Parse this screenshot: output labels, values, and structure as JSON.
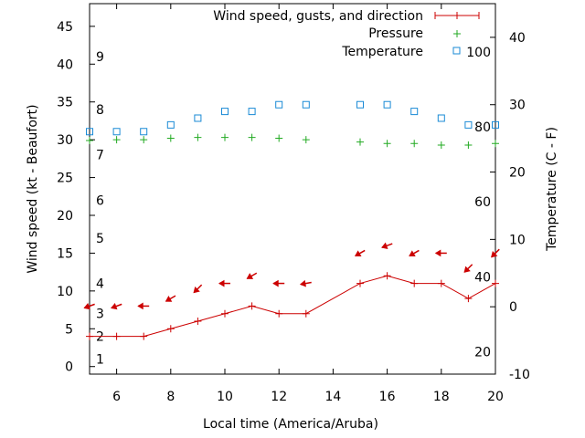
{
  "chart_data": {
    "type": "line",
    "xlabel": "Local time (America/Aruba)",
    "ylabel": "Wind speed (kt - Beaufort)",
    "y2label": "Temperature (C - F)",
    "xlim": [
      5,
      20
    ],
    "ylim": [
      -1,
      48
    ],
    "y2lim": [
      -10,
      45
    ],
    "x_ticks": [
      6,
      8,
      10,
      12,
      14,
      16,
      18,
      20
    ],
    "y_ticks": [
      0,
      5,
      10,
      15,
      20,
      25,
      30,
      35,
      40,
      45
    ],
    "y2_ticks": [
      -10,
      0,
      10,
      20,
      30,
      40
    ],
    "beaufort_labels": [
      {
        "label": "1",
        "kt": 1
      },
      {
        "label": "2",
        "kt": 4
      },
      {
        "label": "3",
        "kt": 7
      },
      {
        "label": "4",
        "kt": 11
      },
      {
        "label": "5",
        "kt": 17
      },
      {
        "label": "6",
        "kt": 22
      },
      {
        "label": "7",
        "kt": 28
      },
      {
        "label": "8",
        "kt": 34
      },
      {
        "label": "9",
        "kt": 41
      }
    ],
    "fahrenheit_labels": [
      {
        "label": "20",
        "celsius": -6.7
      },
      {
        "label": "40",
        "celsius": 4.4
      },
      {
        "label": "60",
        "celsius": 15.6
      },
      {
        "label": "80",
        "celsius": 26.7
      },
      {
        "label": "100",
        "celsius": 37.8
      }
    ],
    "legend_position": "top-right",
    "series": [
      {
        "name": "Wind speed, gusts, and direction",
        "color": "#cc0000",
        "marker": "plus",
        "axis": "y",
        "x": [
          5,
          6,
          7,
          8,
          9,
          10,
          11,
          12,
          13,
          15,
          16,
          17,
          18,
          19,
          20
        ],
        "values": [
          4,
          4,
          4,
          5,
          6,
          7,
          8,
          7,
          7,
          11,
          12,
          11,
          11,
          9,
          11
        ]
      },
      {
        "name": "Pressure",
        "color": "#22aa22",
        "marker": "plus",
        "axis": "y",
        "x": [
          5,
          6,
          7,
          8,
          9,
          10,
          11,
          12,
          13,
          15,
          16,
          17,
          18,
          19,
          20
        ],
        "values": [
          29.9,
          30.0,
          30.0,
          30.2,
          30.3,
          30.3,
          30.3,
          30.2,
          30.0,
          29.7,
          29.5,
          29.5,
          29.3,
          29.3,
          29.5
        ]
      },
      {
        "name": "Temperature",
        "color": "#1a8ad6",
        "marker": "square",
        "axis": "y2",
        "x": [
          5,
          6,
          7,
          8,
          9,
          10,
          11,
          12,
          13,
          15,
          16,
          17,
          18,
          19,
          20
        ],
        "values": [
          26,
          26,
          26,
          27,
          28,
          29,
          29,
          30,
          30,
          30,
          30,
          29,
          28,
          27,
          27
        ]
      }
    ],
    "wind_direction_arrows": {
      "color": "#cc0000",
      "x": [
        5,
        6,
        7,
        8,
        9,
        10,
        11,
        12,
        13,
        15,
        16,
        17,
        18,
        19,
        20
      ],
      "kt": [
        8,
        8,
        8,
        9,
        10.3,
        11,
        12,
        11,
        11,
        15,
        16,
        15,
        15,
        13,
        15
      ],
      "bearing_deg": [
        70,
        70,
        90,
        60,
        45,
        90,
        60,
        90,
        80,
        60,
        70,
        60,
        90,
        45,
        45
      ]
    }
  }
}
